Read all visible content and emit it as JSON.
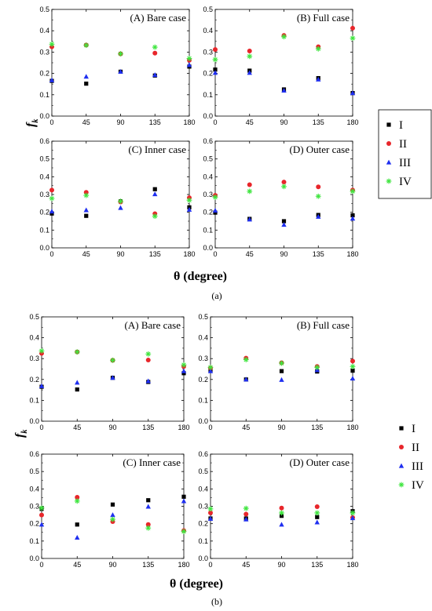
{
  "figure_labels": [
    "(a)",
    "(b)"
  ],
  "x_axis_label": "θ (degree)",
  "y_axis_label_main": "f",
  "y_axis_label_sub": "k",
  "legend": [
    {
      "label": "I",
      "marker": "square",
      "color": "#000000"
    },
    {
      "label": "II",
      "marker": "circle",
      "color": "#e8262b"
    },
    {
      "label": "III",
      "marker": "triangle",
      "color": "#1f2ff0"
    },
    {
      "label": "IV",
      "marker": "star",
      "color": "#3fe53f"
    }
  ],
  "chart_data": [
    {
      "type": "scatter",
      "group": "(a)",
      "title": "(A)  Bare case",
      "x": [
        0,
        45,
        90,
        135,
        180
      ],
      "ylim": [
        0,
        0.5
      ],
      "yticks": [
        "0.0",
        "0.1",
        "0.2",
        "0.3",
        "0.4",
        "0.5"
      ],
      "xticks": [
        "0",
        "45",
        "90",
        "135",
        "180"
      ],
      "series": [
        {
          "name": "I",
          "values": [
            0.165,
            0.152,
            0.208,
            0.19,
            0.232
          ]
        },
        {
          "name": "II",
          "values": [
            0.325,
            0.333,
            0.292,
            0.295,
            0.262
          ]
        },
        {
          "name": "III",
          "values": [
            0.168,
            0.185,
            0.208,
            0.193,
            0.24
          ]
        },
        {
          "name": "IV",
          "values": [
            0.337,
            0.332,
            0.292,
            0.323,
            0.27
          ]
        }
      ]
    },
    {
      "type": "scatter",
      "group": "(a)",
      "title": "(B)  Full case",
      "x": [
        0,
        45,
        90,
        135,
        180
      ],
      "ylim": [
        0,
        0.5
      ],
      "yticks": [
        "0.0",
        "0.1",
        "0.2",
        "0.3",
        "0.4",
        "0.5"
      ],
      "xticks": [
        "0",
        "45",
        "90",
        "135",
        "180"
      ],
      "series": [
        {
          "name": "I",
          "values": [
            0.218,
            0.213,
            0.125,
            0.178,
            0.108
          ]
        },
        {
          "name": "II",
          "values": [
            0.312,
            0.305,
            0.378,
            0.325,
            0.412
          ]
        },
        {
          "name": "III",
          "values": [
            0.203,
            0.203,
            0.12,
            0.172,
            0.108
          ]
        },
        {
          "name": "IV",
          "values": [
            0.265,
            0.28,
            0.372,
            0.315,
            0.365
          ]
        }
      ]
    },
    {
      "type": "scatter",
      "group": "(a)",
      "title": "(C)  Inner case",
      "x": [
        0,
        45,
        90,
        135,
        180
      ],
      "ylim": [
        0,
        0.6
      ],
      "yticks": [
        "0.0",
        "0.1",
        "0.2",
        "0.3",
        "0.4",
        "0.5",
        "0.6"
      ],
      "xticks": [
        "0",
        "45",
        "90",
        "135",
        "180"
      ],
      "series": [
        {
          "name": "I",
          "values": [
            0.193,
            0.18,
            0.262,
            0.33,
            0.228
          ]
        },
        {
          "name": "II",
          "values": [
            0.325,
            0.312,
            0.258,
            0.192,
            0.282
          ]
        },
        {
          "name": "III",
          "values": [
            0.205,
            0.212,
            0.225,
            0.302,
            0.215
          ]
        },
        {
          "name": "IV",
          "values": [
            0.278,
            0.295,
            0.262,
            0.178,
            0.268
          ]
        }
      ]
    },
    {
      "type": "scatter",
      "group": "(a)",
      "title": "(D)  Outer case",
      "x": [
        0,
        45,
        90,
        135,
        180
      ],
      "ylim": [
        0,
        0.6
      ],
      "yticks": [
        "0.0",
        "0.1",
        "0.2",
        "0.3",
        "0.4",
        "0.5",
        "0.6"
      ],
      "xticks": [
        "0",
        "45",
        "90",
        "135",
        "180"
      ],
      "series": [
        {
          "name": "I",
          "values": [
            0.198,
            0.163,
            0.15,
            0.185,
            0.183
          ]
        },
        {
          "name": "II",
          "values": [
            0.295,
            0.355,
            0.37,
            0.343,
            0.325
          ]
        },
        {
          "name": "III",
          "values": [
            0.21,
            0.16,
            0.13,
            0.175,
            0.165
          ]
        },
        {
          "name": "IV",
          "values": [
            0.285,
            0.318,
            0.345,
            0.29,
            0.318
          ]
        }
      ]
    },
    {
      "type": "scatter",
      "group": "(b)",
      "title": "(A)  Bare case",
      "x": [
        0,
        45,
        90,
        135,
        180
      ],
      "ylim": [
        0,
        0.5
      ],
      "yticks": [
        "0.0",
        "0.1",
        "0.2",
        "0.3",
        "0.4",
        "0.5"
      ],
      "xticks": [
        "0",
        "45",
        "90",
        "135",
        "180"
      ],
      "series": [
        {
          "name": "I",
          "values": [
            0.165,
            0.152,
            0.208,
            0.188,
            0.23
          ]
        },
        {
          "name": "II",
          "values": [
            0.325,
            0.332,
            0.292,
            0.293,
            0.262
          ]
        },
        {
          "name": "III",
          "values": [
            0.168,
            0.185,
            0.208,
            0.192,
            0.24
          ]
        },
        {
          "name": "IV",
          "values": [
            0.337,
            0.332,
            0.292,
            0.322,
            0.27
          ]
        }
      ]
    },
    {
      "type": "scatter",
      "group": "(b)",
      "title": "(B)  Full case",
      "x": [
        0,
        45,
        90,
        135,
        180
      ],
      "ylim": [
        0,
        0.5
      ],
      "yticks": [
        "0.0",
        "0.1",
        "0.2",
        "0.3",
        "0.4",
        "0.5"
      ],
      "xticks": [
        "0",
        "45",
        "90",
        "135",
        "180"
      ],
      "series": [
        {
          "name": "I",
          "values": [
            0.245,
            0.2,
            0.24,
            0.238,
            0.242
          ]
        },
        {
          "name": "II",
          "values": [
            0.255,
            0.302,
            0.28,
            0.262,
            0.288
          ]
        },
        {
          "name": "III",
          "values": [
            0.24,
            0.2,
            0.198,
            0.245,
            0.205
          ]
        },
        {
          "name": "IV",
          "values": [
            0.258,
            0.295,
            0.278,
            0.258,
            0.262
          ]
        }
      ]
    },
    {
      "type": "scatter",
      "group": "(b)",
      "title": "(C)  Inner case",
      "x": [
        0,
        45,
        90,
        135,
        180
      ],
      "ylim": [
        0,
        0.6
      ],
      "yticks": [
        "0.0",
        "0.1",
        "0.2",
        "0.3",
        "0.4",
        "0.5",
        "0.6"
      ],
      "xticks": [
        "0",
        "45",
        "90",
        "135",
        "180"
      ],
      "series": [
        {
          "name": "I",
          "values": [
            0.285,
            0.195,
            0.31,
            0.335,
            0.355
          ]
        },
        {
          "name": "II",
          "values": [
            0.25,
            0.352,
            0.212,
            0.195,
            0.16
          ]
        },
        {
          "name": "III",
          "values": [
            0.195,
            0.12,
            0.25,
            0.298,
            0.33
          ]
        },
        {
          "name": "IV",
          "values": [
            0.29,
            0.33,
            0.225,
            0.175,
            0.155
          ]
        }
      ]
    },
    {
      "type": "scatter",
      "group": "(b)",
      "title": "(D)  Outer case",
      "x": [
        0,
        45,
        90,
        135,
        180
      ],
      "ylim": [
        0,
        0.6
      ],
      "yticks": [
        "0.0",
        "0.1",
        "0.2",
        "0.3",
        "0.4",
        "0.5",
        "0.6"
      ],
      "xticks": [
        "0",
        "45",
        "90",
        "135",
        "180"
      ],
      "series": [
        {
          "name": "I",
          "values": [
            0.23,
            0.23,
            0.245,
            0.238,
            0.272
          ]
        },
        {
          "name": "II",
          "values": [
            0.262,
            0.255,
            0.29,
            0.298,
            0.235
          ]
        },
        {
          "name": "III",
          "values": [
            0.228,
            0.225,
            0.195,
            0.208,
            0.232
          ]
        },
        {
          "name": "IV",
          "values": [
            0.285,
            0.288,
            0.262,
            0.262,
            0.262
          ]
        }
      ]
    }
  ]
}
